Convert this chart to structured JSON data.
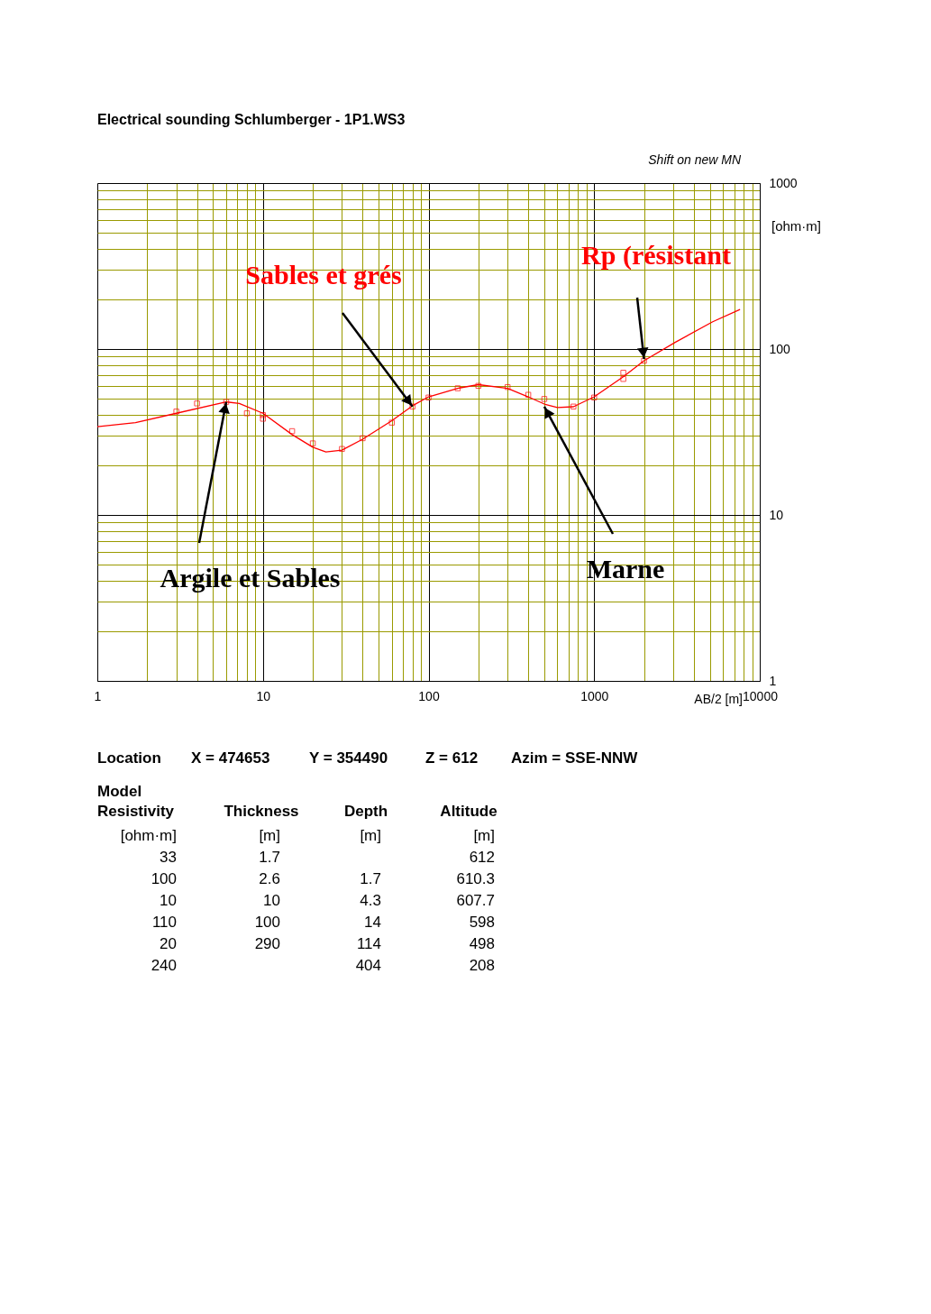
{
  "chart_data": {
    "type": "line",
    "title": "Electrical sounding Schlumberger - 1P1.WS3",
    "xlabel": "AB/2 [m]",
    "ylabel": "[ohm·m]",
    "xlim": [
      1,
      10000
    ],
    "ylim": [
      1,
      1000
    ],
    "xticks": [
      1,
      {
        "value": 2,
        "label": null
      },
      {
        "value": 3,
        "label": null
      },
      {
        "value": 4,
        "label": null
      },
      {
        "value": 5,
        "label": null
      },
      {
        "value": 6,
        "label": null
      },
      {
        "value": 7,
        "label": null
      },
      {
        "value": 8,
        "label": null
      },
      {
        "value": 9,
        "label": null
      },
      10,
      {
        "value": 20,
        "label": null
      },
      {
        "value": 30,
        "label": null
      },
      {
        "value": 40,
        "label": null
      },
      {
        "value": 50,
        "label": null
      },
      {
        "value": 60,
        "label": null
      },
      {
        "value": 70,
        "label": null
      },
      {
        "value": 80,
        "label": null
      },
      {
        "value": 90,
        "label": null
      },
      100,
      {
        "value": 200,
        "label": null
      },
      {
        "value": 300,
        "label": null
      },
      {
        "value": 400,
        "label": null
      },
      {
        "value": 500,
        "label": null
      },
      {
        "value": 600,
        "label": null
      },
      {
        "value": 700,
        "label": null
      },
      {
        "value": 800,
        "label": null
      },
      {
        "value": 900,
        "label": null
      },
      1000,
      {
        "value": 2000,
        "label": null
      },
      {
        "value": 3000,
        "label": null
      },
      {
        "value": 4000,
        "label": null
      },
      {
        "value": 5000,
        "label": null
      },
      {
        "value": 6000,
        "label": null
      },
      {
        "value": 7000,
        "label": null
      },
      {
        "value": 8000,
        "label": null
      },
      {
        "value": 9000,
        "label": null
      },
      10000
    ],
    "yticks": [
      1,
      {
        "value": 2,
        "label": null
      },
      {
        "value": 3,
        "label": null
      },
      {
        "value": 4,
        "label": null
      },
      {
        "value": 5,
        "label": null
      },
      {
        "value": 6,
        "label": null
      },
      {
        "value": 7,
        "label": null
      },
      {
        "value": 8,
        "label": null
      },
      {
        "value": 9,
        "label": null
      },
      10,
      {
        "value": 20,
        "label": null
      },
      {
        "value": 30,
        "label": null
      },
      {
        "value": 40,
        "label": null
      },
      {
        "value": 50,
        "label": null
      },
      {
        "value": 60,
        "label": null
      },
      {
        "value": 70,
        "label": null
      },
      {
        "value": 80,
        "label": null
      },
      {
        "value": 90,
        "label": null
      },
      100,
      {
        "value": 200,
        "label": null
      },
      {
        "value": 300,
        "label": null
      },
      {
        "value": 400,
        "label": null
      },
      {
        "value": 500,
        "label": null
      },
      {
        "value": 600,
        "label": null
      },
      {
        "value": 700,
        "label": null
      },
      {
        "value": 800,
        "label": null
      },
      {
        "value": 900,
        "label": null
      },
      1000
    ],
    "log": "xy",
    "grid": true,
    "series": [
      {
        "type": "scatter",
        "marker": "square",
        "color": "#ff0000",
        "x": [
          3,
          4,
          6,
          8,
          10,
          10,
          15,
          20,
          30,
          40,
          60,
          80,
          100,
          150,
          200,
          300,
          400,
          500,
          750,
          1000,
          1500,
          1500,
          2000
        ],
        "values": [
          42,
          47,
          48,
          41,
          40,
          38,
          32,
          27,
          25,
          29,
          36,
          45,
          51,
          58,
          60,
          59,
          53,
          50,
          45,
          51,
          72,
          66,
          85
        ]
      },
      {
        "line_style": "solid",
        "color": "#ff0000",
        "x": [
          1,
          1.7,
          3,
          6,
          7.2,
          10,
          15,
          20,
          24,
          30,
          40,
          60,
          80,
          100,
          150,
          200,
          300,
          400,
          500,
          600,
          750,
          1000,
          1500,
          2000,
          3100,
          5200,
          7600
        ],
        "values": [
          34,
          36,
          41,
          48,
          47,
          41,
          30.5,
          25.6,
          24,
          24.6,
          28.6,
          37,
          45.5,
          51.5,
          58,
          61,
          58,
          51.5,
          46.6,
          44.4,
          44.9,
          51.5,
          68,
          85,
          110,
          146,
          173
        ]
      }
    ],
    "annotations": [
      {
        "text": "Sables et grés",
        "x": 80,
        "y": 45
      },
      {
        "text": "Rp (résistant",
        "x": 2000,
        "y": 87
      },
      {
        "text": "Argile et Sables",
        "x": 6,
        "y": 48
      },
      {
        "text": "Marne",
        "x": 500,
        "y": 45
      },
      "Shift on new MN",
      "Location",
      "X = 474653",
      "Y = 354490",
      "Z = 612",
      "Azim = SSE-NNW",
      "Model",
      "Resistivity",
      "Thickness",
      "Depth",
      "Altitude",
      "[ohm·m]\n33\n100\n10\n110\n20\n240",
      "[m]\n1.7\n2.6\n10\n100\n290",
      "[m]",
      "1.7\n4.3\n14\n114\n404",
      "[m]\n612\n610.3\n607.7\n598\n498\n208"
    ]
  }
}
